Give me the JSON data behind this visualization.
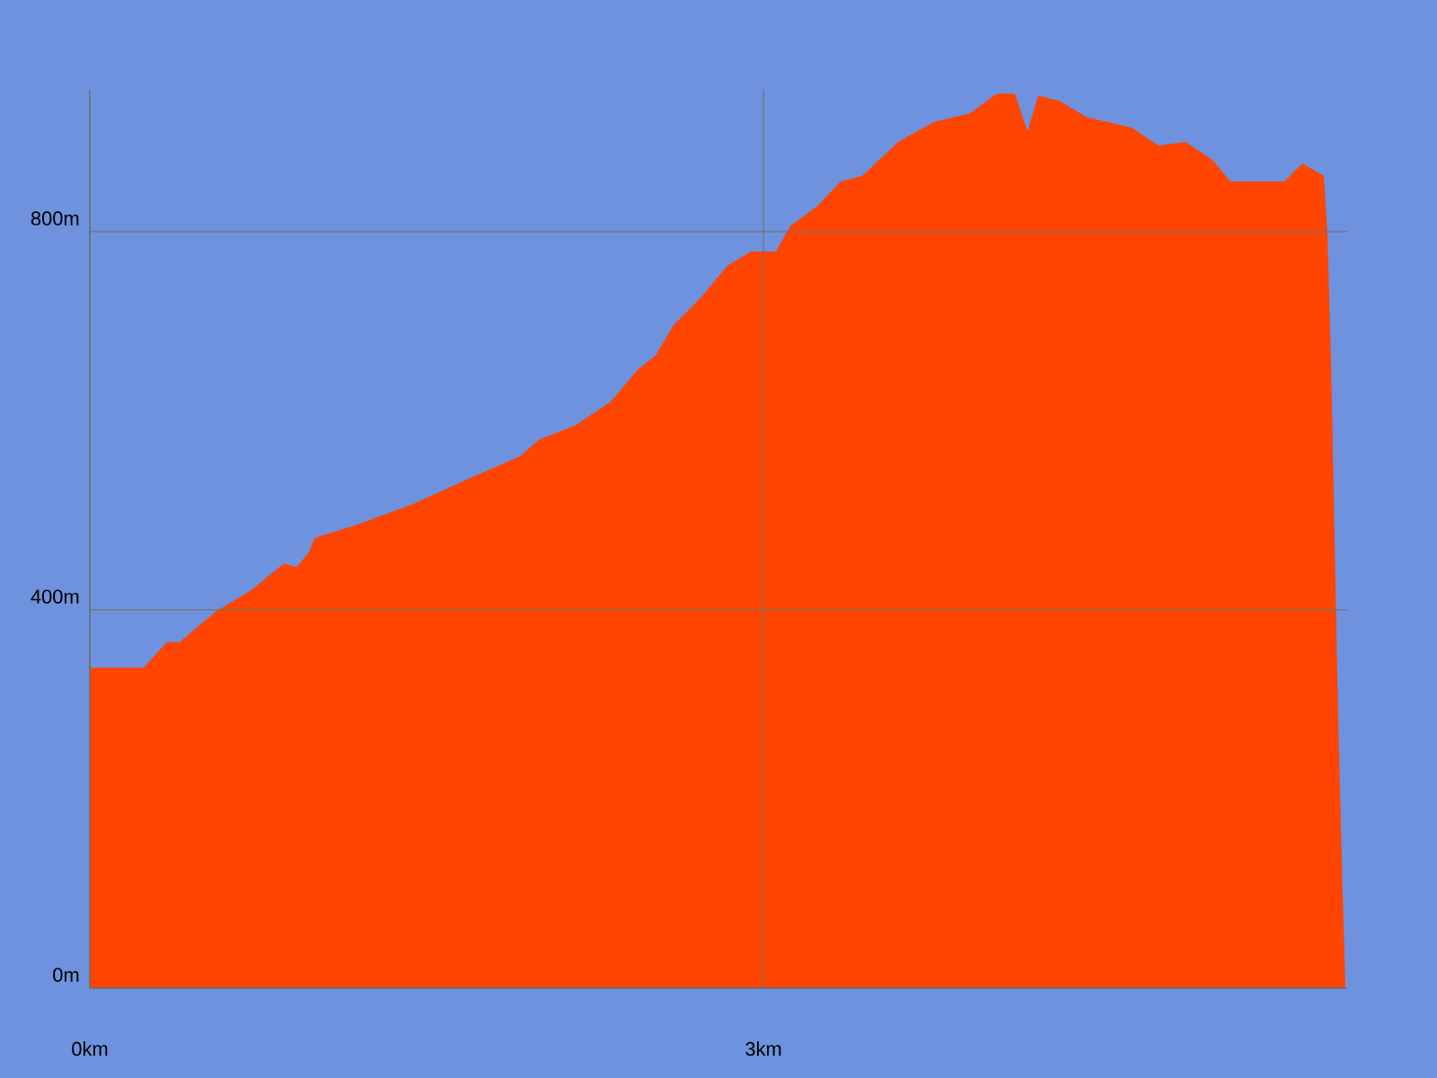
{
  "chart_data": {
    "type": "area",
    "x": [
      0,
      0.24,
      0.344,
      0.4,
      0.56,
      0.72,
      0.864,
      0.92,
      0.976,
      1.0,
      1.2,
      1.44,
      1.68,
      1.92,
      2.0,
      2.16,
      2.32,
      2.44,
      2.52,
      2.6,
      2.72,
      2.84,
      2.944,
      3.056,
      3.12,
      3.24,
      3.344,
      3.44,
      3.6,
      3.76,
      3.92,
      4.04,
      4.12,
      4.176,
      4.224,
      4.32,
      4.44,
      4.64,
      4.76,
      4.88,
      5.0,
      5.08,
      5.16,
      5.32,
      5.4,
      5.496,
      5.512,
      5.528,
      5.544,
      5.56,
      5.576,
      5.592
    ],
    "values": [
      339,
      339,
      366,
      366,
      398,
      421,
      449,
      445,
      461,
      476,
      491,
      512,
      538,
      563,
      580,
      595,
      620,
      654,
      669,
      701,
      730,
      764,
      779,
      779,
      806,
      827,
      853,
      859,
      895,
      916,
      925,
      946,
      946,
      906,
      944,
      938,
      921,
      910,
      891,
      895,
      876,
      853,
      853,
      853,
      872,
      859,
      796,
      663,
      474,
      284,
      133,
      0
    ],
    "color": "#ff4500",
    "xlim": [
      0,
      5.6
    ],
    "ylim": [
      0,
      950
    ],
    "xticks": [
      {
        "value": 0,
        "label": "0km"
      },
      {
        "value": 3,
        "label": "3km"
      }
    ],
    "yticks": [
      {
        "value": 0,
        "label": "0m"
      },
      {
        "value": 400,
        "label": "400m"
      },
      {
        "value": 800,
        "label": "800m"
      }
    ],
    "grid": true
  }
}
